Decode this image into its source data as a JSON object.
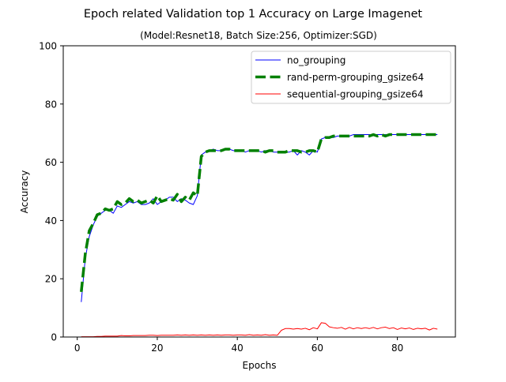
{
  "chart_data": {
    "type": "line",
    "title": "Epoch related Validation top 1 Accuracy on Large Imagenet",
    "subtitle": "(Model:Resnet18, Batch Size:256, Optimizer:SGD)",
    "xlabel": "Epochs",
    "ylabel": "Accuracy",
    "xlim": [
      -3.5,
      94.5
    ],
    "ylim": [
      0,
      100
    ],
    "xticks": [
      0,
      20,
      40,
      60,
      80
    ],
    "yticks": [
      0,
      20,
      40,
      60,
      80,
      100
    ],
    "grid": false,
    "legend_position": "top-right",
    "x": [
      1,
      2,
      3,
      4,
      5,
      6,
      7,
      8,
      9,
      10,
      11,
      12,
      13,
      14,
      15,
      16,
      17,
      18,
      19,
      20,
      21,
      22,
      23,
      24,
      25,
      26,
      27,
      28,
      29,
      30,
      31,
      32,
      33,
      34,
      35,
      36,
      37,
      38,
      39,
      40,
      41,
      42,
      43,
      44,
      45,
      46,
      47,
      48,
      49,
      50,
      51,
      52,
      53,
      54,
      55,
      56,
      57,
      58,
      59,
      60,
      61,
      62,
      63,
      64,
      65,
      66,
      67,
      68,
      69,
      70,
      71,
      72,
      73,
      74,
      75,
      76,
      77,
      78,
      79,
      80,
      81,
      82,
      83,
      84,
      85,
      86,
      87,
      88,
      89,
      90
    ],
    "series": [
      {
        "name": "no_grouping",
        "color": "#0000ff",
        "style": "solid",
        "width": 1,
        "values": [
          12.0,
          27.0,
          34.5,
          38.5,
          41.5,
          42.5,
          43.5,
          43.5,
          42.5,
          45.0,
          44.5,
          45.5,
          46.5,
          46.0,
          46.5,
          45.5,
          45.5,
          46.0,
          47.5,
          45.5,
          46.5,
          47.0,
          48.0,
          48.0,
          46.5,
          47.5,
          47.0,
          46.0,
          45.5,
          48.5,
          62.5,
          63.5,
          64.0,
          64.5,
          64.0,
          64.0,
          64.5,
          64.5,
          64.0,
          64.0,
          64.0,
          63.5,
          64.0,
          64.0,
          64.0,
          63.5,
          64.0,
          64.0,
          63.5,
          63.5,
          63.5,
          63.5,
          63.5,
          64.0,
          62.5,
          64.0,
          63.5,
          62.5,
          64.0,
          63.5,
          68.0,
          68.5,
          68.5,
          68.5,
          69.0,
          69.0,
          69.0,
          69.0,
          69.5,
          69.5,
          69.5,
          69.5,
          69.5,
          69.5,
          69.5,
          69.5,
          69.5,
          69.5,
          69.5,
          69.5,
          69.5,
          69.5,
          69.5,
          69.5,
          69.5,
          69.5,
          69.5,
          69.5,
          69.5,
          69.5
        ]
      },
      {
        "name": "rand-perm-grouping_gsize64",
        "color": "#008000",
        "style": "dashed",
        "width": 3.5,
        "values": [
          15.5,
          28.5,
          36.5,
          39.0,
          42.0,
          42.5,
          44.0,
          43.5,
          44.0,
          46.5,
          45.5,
          46.0,
          47.5,
          46.5,
          47.0,
          46.0,
          46.5,
          47.0,
          46.0,
          48.5,
          46.5,
          47.0,
          47.5,
          47.0,
          49.0,
          46.5,
          48.0,
          47.0,
          49.5,
          48.5,
          62.0,
          63.5,
          64.0,
          64.0,
          64.0,
          64.0,
          64.5,
          64.5,
          64.0,
          64.0,
          64.0,
          64.0,
          64.0,
          64.0,
          64.0,
          64.0,
          63.5,
          64.0,
          64.0,
          63.5,
          63.5,
          63.5,
          64.0,
          64.0,
          64.0,
          63.5,
          63.5,
          64.0,
          64.0,
          63.5,
          68.0,
          68.5,
          68.5,
          69.0,
          69.0,
          69.0,
          69.0,
          69.0,
          69.0,
          69.0,
          69.0,
          69.0,
          69.0,
          69.5,
          69.0,
          69.5,
          69.0,
          69.5,
          69.5,
          69.5,
          69.5,
          69.5,
          69.5,
          69.5,
          69.5,
          69.5,
          69.5,
          69.5,
          69.5,
          69.5
        ]
      },
      {
        "name": "sequential-grouping_gsize64",
        "color": "#ff0000",
        "style": "solid",
        "width": 1,
        "values": [
          0.1,
          0.1,
          0.1,
          0.1,
          0.2,
          0.2,
          0.3,
          0.3,
          0.3,
          0.3,
          0.5,
          0.4,
          0.4,
          0.5,
          0.5,
          0.5,
          0.5,
          0.6,
          0.6,
          0.5,
          0.6,
          0.6,
          0.6,
          0.6,
          0.7,
          0.6,
          0.7,
          0.6,
          0.7,
          0.6,
          0.7,
          0.6,
          0.7,
          0.6,
          0.7,
          0.6,
          0.7,
          0.7,
          0.6,
          0.7,
          0.7,
          0.6,
          0.8,
          0.6,
          0.7,
          0.6,
          0.8,
          0.6,
          0.7,
          0.6,
          2.3,
          2.9,
          2.9,
          2.7,
          2.9,
          2.7,
          3.0,
          2.5,
          3.2,
          2.8,
          4.9,
          4.7,
          3.5,
          3.2,
          3.0,
          3.3,
          2.7,
          3.3,
          2.8,
          3.2,
          2.9,
          3.2,
          2.9,
          3.3,
          2.8,
          3.2,
          3.4,
          2.9,
          3.2,
          2.6,
          3.1,
          2.8,
          3.1,
          2.6,
          3.0,
          2.8,
          3.0,
          2.4,
          3.0,
          2.7
        ]
      }
    ]
  }
}
